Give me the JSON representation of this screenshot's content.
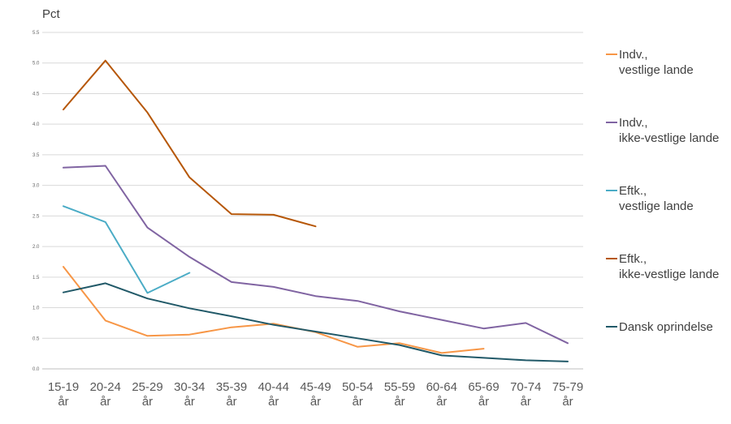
{
  "chart_data": {
    "type": "line",
    "ylabel": "Pct",
    "ylim": [
      0,
      5.5
    ],
    "yticks": [
      "0.0",
      "0.5",
      "1.0",
      "1.5",
      "2.0",
      "2.5",
      "3.0",
      "3.5",
      "4.0",
      "4.5",
      "5.0",
      "5.5"
    ],
    "categories": [
      [
        "15-19",
        "år"
      ],
      [
        "20-24",
        "år"
      ],
      [
        "25-29",
        "år"
      ],
      [
        "30-34",
        "år"
      ],
      [
        "35-39",
        "år"
      ],
      [
        "40-44",
        "år"
      ],
      [
        "45-49",
        "år"
      ],
      [
        "50-54",
        "år"
      ],
      [
        "55-59",
        "år"
      ],
      [
        "60-64",
        "år"
      ],
      [
        "65-69",
        "år"
      ],
      [
        "70-74",
        "år"
      ],
      [
        "75-79",
        "år"
      ]
    ],
    "grid": true,
    "legend_position": "right",
    "series": [
      {
        "name": [
          "Indv.,",
          "vestlige lande"
        ],
        "color": "#f79646",
        "values": [
          1.67,
          0.79,
          0.54,
          0.56,
          0.68,
          0.74,
          0.6,
          0.36,
          0.42,
          0.26,
          0.33,
          null,
          null
        ]
      },
      {
        "name": [
          "Indv.,",
          "ikke-vestlige lande"
        ],
        "color": "#8064a2",
        "values": [
          3.29,
          3.32,
          2.31,
          1.83,
          1.42,
          1.34,
          1.19,
          1.11,
          0.94,
          0.8,
          0.66,
          0.75,
          0.42
        ]
      },
      {
        "name": [
          "Eftk.,",
          "vestlige lande"
        ],
        "color": "#4bacc6",
        "values": [
          2.66,
          2.4,
          1.24,
          1.57,
          null,
          null,
          null,
          null,
          null,
          null,
          null,
          null,
          null
        ]
      },
      {
        "name": [
          "Eftk.,",
          "ikke-vestlige lande"
        ],
        "color": "#b65708",
        "values": [
          4.24,
          5.04,
          4.19,
          3.13,
          2.53,
          2.52,
          2.33,
          null,
          null,
          null,
          null,
          null,
          null
        ]
      },
      {
        "name": [
          "Dansk oprindelse"
        ],
        "color": "#215968",
        "values": [
          1.25,
          1.4,
          1.15,
          0.99,
          0.86,
          0.72,
          0.61,
          0.5,
          0.39,
          0.22,
          0.18,
          0.14,
          0.12
        ]
      }
    ]
  }
}
